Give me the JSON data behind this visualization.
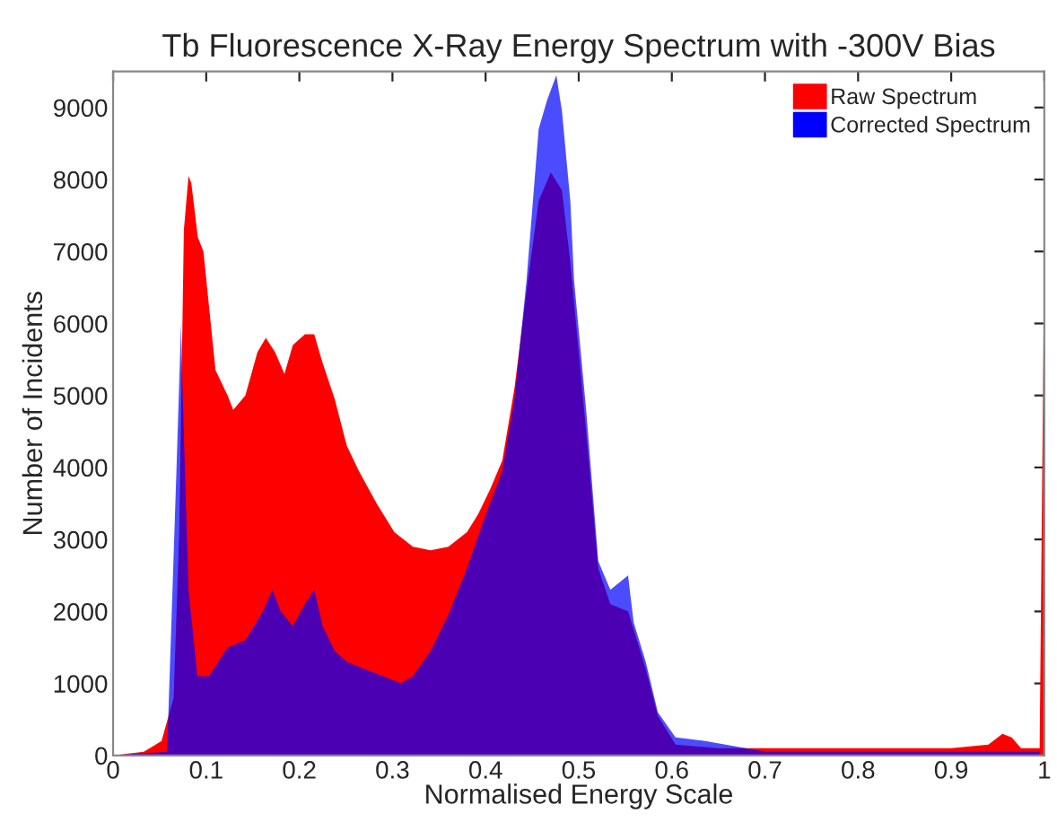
{
  "chart_data": {
    "type": "area",
    "title": "Tb Fluorescence X-Ray Energy Spectrum with -300V Bias",
    "xlabel": "Normalised Energy Scale",
    "ylabel": "Number of Incidents",
    "xlim": [
      0,
      1
    ],
    "xticks": [
      0,
      0.1,
      0.2,
      0.3,
      0.4,
      0.5,
      0.6,
      0.7,
      0.8,
      0.9,
      1
    ],
    "ylim": [
      0,
      9500
    ],
    "yticks": [
      0,
      1000,
      2000,
      3000,
      4000,
      5000,
      6000,
      7000,
      8000,
      9000
    ],
    "grid": false,
    "legend": "top right",
    "series": [
      {
        "name": "Raw Spectrum",
        "color": "#ff0000",
        "x": [
          0,
          0.033,
          0.052,
          0.065,
          0.071,
          0.076,
          0.081,
          0.084,
          0.091,
          0.097,
          0.11,
          0.123,
          0.129,
          0.142,
          0.155,
          0.164,
          0.174,
          0.184,
          0.193,
          0.206,
          0.216,
          0.225,
          0.238,
          0.251,
          0.264,
          0.283,
          0.302,
          0.322,
          0.341,
          0.36,
          0.38,
          0.392,
          0.405,
          0.418,
          0.431,
          0.444,
          0.457,
          0.47,
          0.482,
          0.491,
          0.508,
          0.521,
          0.534,
          0.553,
          0.572,
          0.585,
          0.604,
          0.65,
          0.7,
          0.8,
          0.9,
          0.94,
          0.955,
          0.965,
          0.975,
          0.995,
          1
        ],
        "values": [
          0,
          50,
          200,
          800,
          3100,
          7300,
          8050,
          7950,
          7200,
          7000,
          5350,
          5000,
          4800,
          5000,
          5600,
          5800,
          5600,
          5300,
          5700,
          5850,
          5850,
          5450,
          4950,
          4300,
          3950,
          3500,
          3100,
          2900,
          2850,
          2900,
          3100,
          3350,
          3700,
          4100,
          5100,
          6450,
          7700,
          8100,
          7850,
          6850,
          4500,
          2600,
          2100,
          2000,
          1200,
          550,
          150,
          100,
          100,
          100,
          100,
          150,
          300,
          250,
          100,
          100,
          7000
        ]
      },
      {
        "name": "Corrected Spectrum",
        "color": "#0000ff",
        "x": [
          0,
          0.058,
          0.068,
          0.073,
          0.0745,
          0.081,
          0.0906,
          0.103,
          0.123,
          0.142,
          0.161,
          0.171,
          0.18,
          0.193,
          0.206,
          0.216,
          0.225,
          0.238,
          0.251,
          0.27,
          0.29,
          0.309,
          0.322,
          0.341,
          0.36,
          0.38,
          0.399,
          0.418,
          0.431,
          0.444,
          0.457,
          0.466,
          0.476,
          0.482,
          0.491,
          0.495,
          0.508,
          0.521,
          0.534,
          0.553,
          0.559,
          0.572,
          0.585,
          0.604,
          0.636,
          0.701,
          0.815,
          0.995
        ],
        "values": [
          0,
          50,
          3950,
          6000,
          5100,
          2300,
          1100,
          1100,
          1500,
          1600,
          2000,
          2300,
          2000,
          1800,
          2100,
          2300,
          1800,
          1450,
          1300,
          1200,
          1100,
          1000,
          1100,
          1450,
          1950,
          2600,
          3300,
          3950,
          4950,
          6600,
          8700,
          9100,
          9450,
          8950,
          7700,
          6600,
          4800,
          2700,
          2300,
          2500,
          1850,
          1300,
          600,
          250,
          200,
          50,
          50,
          50
        ]
      }
    ]
  }
}
